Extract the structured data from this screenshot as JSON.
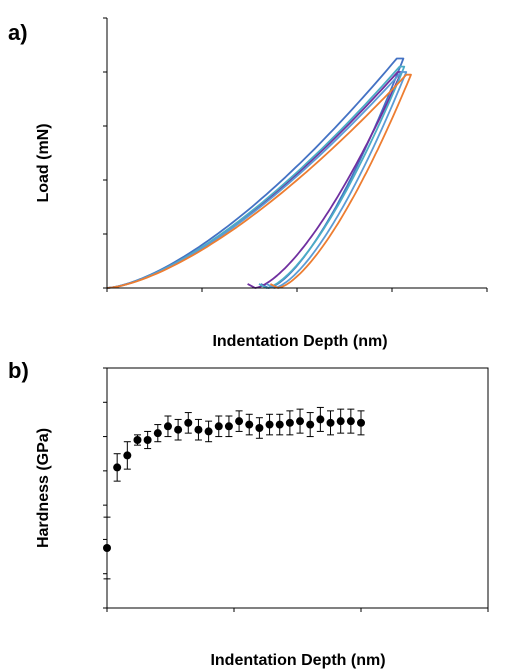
{
  "chart_data": [
    {
      "panel_label": "a)",
      "type": "line",
      "xlabel": "Indentation Depth (nm)",
      "ylabel": "Load (mN)",
      "xlim": [
        0,
        4000
      ],
      "ylim": [
        0,
        100
      ],
      "xticks": [
        "0",
        "1000",
        "2000",
        "3000",
        "4000"
      ],
      "yticks": [
        "0",
        "20",
        "40",
        "60",
        "80",
        "100"
      ],
      "grid": false,
      "legend": "none",
      "series": [
        {
          "color": "#4472c4",
          "max_depth": 3050,
          "max_load": 85,
          "hold_depth": 3120,
          "final_depth": 1700
        },
        {
          "color": "#7030a0",
          "max_depth": 3060,
          "max_load": 80,
          "hold_depth": 3100,
          "final_depth": 1560
        },
        {
          "color": "#4bacc6",
          "max_depth": 3080,
          "max_load": 82,
          "hold_depth": 3130,
          "final_depth": 1680
        },
        {
          "color": "#5b9bd5",
          "max_depth": 3100,
          "max_load": 80,
          "hold_depth": 3150,
          "final_depth": 1760
        },
        {
          "color": "#ed7d31",
          "max_depth": 3150,
          "max_load": 79,
          "hold_depth": 3200,
          "final_depth": 1800
        }
      ]
    },
    {
      "panel_label": "b)",
      "type": "scatter",
      "xlabel": "Indentation Depth (nm)",
      "ylabel": "Hardness (GPa)",
      "xlim": [
        0,
        1500
      ],
      "ylim": [
        0,
        0.7
      ],
      "xticks": [
        "0",
        "500",
        "1000",
        "1500"
      ],
      "yticks": [
        "0",
        "0.1",
        "0.2",
        "0.3",
        "0.4",
        "0.5",
        "0.6",
        "0.7"
      ],
      "grid": false,
      "legend": "none",
      "marker_color": "#000000",
      "points": [
        {
          "x": 0,
          "y": 0.175,
          "err": 0.09
        },
        {
          "x": 40,
          "y": 0.41,
          "err": 0.04
        },
        {
          "x": 80,
          "y": 0.445,
          "err": 0.04
        },
        {
          "x": 120,
          "y": 0.49,
          "err": 0.015
        },
        {
          "x": 160,
          "y": 0.49,
          "err": 0.025
        },
        {
          "x": 200,
          "y": 0.51,
          "err": 0.025
        },
        {
          "x": 240,
          "y": 0.53,
          "err": 0.03
        },
        {
          "x": 280,
          "y": 0.52,
          "err": 0.03
        },
        {
          "x": 320,
          "y": 0.54,
          "err": 0.03
        },
        {
          "x": 360,
          "y": 0.52,
          "err": 0.03
        },
        {
          "x": 400,
          "y": 0.515,
          "err": 0.03
        },
        {
          "x": 440,
          "y": 0.53,
          "err": 0.03
        },
        {
          "x": 480,
          "y": 0.53,
          "err": 0.03
        },
        {
          "x": 520,
          "y": 0.545,
          "err": 0.03
        },
        {
          "x": 560,
          "y": 0.535,
          "err": 0.03
        },
        {
          "x": 600,
          "y": 0.525,
          "err": 0.03
        },
        {
          "x": 640,
          "y": 0.535,
          "err": 0.03
        },
        {
          "x": 680,
          "y": 0.535,
          "err": 0.03
        },
        {
          "x": 720,
          "y": 0.54,
          "err": 0.035
        },
        {
          "x": 760,
          "y": 0.545,
          "err": 0.035
        },
        {
          "x": 800,
          "y": 0.535,
          "err": 0.035
        },
        {
          "x": 840,
          "y": 0.55,
          "err": 0.035
        },
        {
          "x": 880,
          "y": 0.54,
          "err": 0.035
        },
        {
          "x": 920,
          "y": 0.545,
          "err": 0.035
        },
        {
          "x": 960,
          "y": 0.545,
          "err": 0.035
        },
        {
          "x": 1000,
          "y": 0.54,
          "err": 0.035
        }
      ]
    }
  ]
}
